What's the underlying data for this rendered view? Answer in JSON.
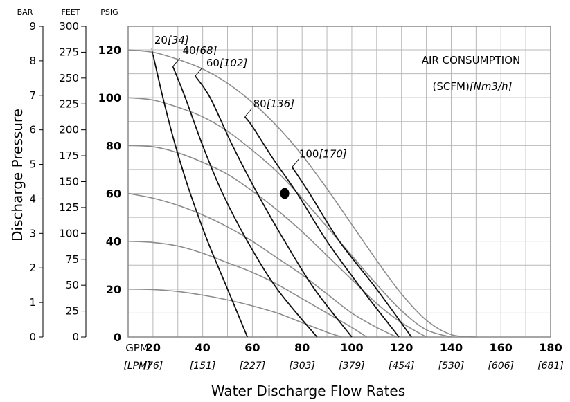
{
  "chart_data": {
    "type": "line",
    "xlabel": "Water Discharge Flow Rates",
    "ylabel": "Discharge Pressure",
    "x_unit_label": "GPM",
    "x_secondary_unit_label": "[LPM]",
    "x_ticks": [
      20,
      40,
      60,
      80,
      100,
      120,
      140,
      160,
      180
    ],
    "x_secondary_ticks": [
      "[76]",
      "[151]",
      "[227]",
      "[303]",
      "[379]",
      "[454]",
      "[530]",
      "[606]",
      "[681]"
    ],
    "xlim": [
      10,
      180
    ],
    "ylim": [
      0,
      125
    ],
    "grid": true,
    "y_axes": [
      {
        "unit": "BAR",
        "ticks": [
          "0",
          "1",
          "2",
          "3",
          "4",
          "5",
          "6",
          "7",
          "8",
          "9"
        ],
        "values": [
          0,
          1,
          2,
          3,
          4,
          5,
          6,
          7,
          8,
          9
        ]
      },
      {
        "unit": "FEET",
        "ticks": [
          "0",
          "25",
          "50",
          "75",
          "100",
          "125",
          "150",
          "175",
          "200",
          "225",
          "250",
          "275",
          "300"
        ],
        "values": [
          0,
          25,
          50,
          75,
          100,
          125,
          150,
          175,
          200,
          225,
          250,
          275,
          300
        ]
      },
      {
        "unit": "PSIG",
        "ticks": [
          "0",
          "20",
          "40",
          "60",
          "80",
          "100",
          "120"
        ],
        "values": [
          0,
          20,
          40,
          60,
          80,
          100,
          120
        ]
      }
    ],
    "annotation_title_line1": "AIR CONSUMPTION",
    "annotation_title_line2_plain": "(SCFM)",
    "annotation_title_line2_italic": "[Nm3/h]",
    "performance_curves": [
      {
        "pressure_psig": 120,
        "points": [
          [
            10,
            120
          ],
          [
            20,
            119
          ],
          [
            30,
            116
          ],
          [
            40,
            112
          ],
          [
            50,
            106
          ],
          [
            60,
            98
          ],
          [
            70,
            88
          ],
          [
            80,
            76
          ],
          [
            90,
            62
          ],
          [
            100,
            47
          ],
          [
            110,
            32
          ],
          [
            120,
            18
          ],
          [
            130,
            7
          ],
          [
            140,
            1
          ],
          [
            150,
            0
          ]
        ]
      },
      {
        "pressure_psig": 100,
        "points": [
          [
            10,
            100
          ],
          [
            20,
            99
          ],
          [
            30,
            96
          ],
          [
            40,
            92
          ],
          [
            50,
            86
          ],
          [
            60,
            78
          ],
          [
            70,
            69
          ],
          [
            80,
            58
          ],
          [
            90,
            46
          ],
          [
            100,
            34
          ],
          [
            110,
            22
          ],
          [
            120,
            11
          ],
          [
            130,
            3
          ],
          [
            140,
            0
          ]
        ]
      },
      {
        "pressure_psig": 80,
        "points": [
          [
            10,
            80
          ],
          [
            20,
            79.5
          ],
          [
            30,
            77
          ],
          [
            40,
            73
          ],
          [
            50,
            68
          ],
          [
            60,
            61
          ],
          [
            70,
            53
          ],
          [
            80,
            44
          ],
          [
            90,
            34
          ],
          [
            100,
            24
          ],
          [
            110,
            14
          ],
          [
            120,
            6
          ],
          [
            130,
            0
          ]
        ]
      },
      {
        "pressure_psig": 60,
        "points": [
          [
            10,
            60
          ],
          [
            20,
            58
          ],
          [
            30,
            55
          ],
          [
            40,
            51
          ],
          [
            50,
            46
          ],
          [
            60,
            40
          ],
          [
            70,
            33
          ],
          [
            80,
            26
          ],
          [
            90,
            18
          ],
          [
            100,
            10
          ],
          [
            110,
            4
          ],
          [
            118,
            0
          ]
        ]
      },
      {
        "pressure_psig": 40,
        "points": [
          [
            10,
            40
          ],
          [
            20,
            39.5
          ],
          [
            30,
            38
          ],
          [
            40,
            35
          ],
          [
            50,
            31
          ],
          [
            60,
            27
          ],
          [
            70,
            22
          ],
          [
            80,
            16
          ],
          [
            90,
            10
          ],
          [
            100,
            4
          ],
          [
            106,
            0
          ]
        ]
      },
      {
        "pressure_psig": 20,
        "points": [
          [
            10,
            20
          ],
          [
            20,
            19.8
          ],
          [
            30,
            19
          ],
          [
            40,
            17.5
          ],
          [
            50,
            15.5
          ],
          [
            60,
            13
          ],
          [
            70,
            10
          ],
          [
            80,
            6
          ],
          [
            90,
            2
          ],
          [
            96,
            0
          ]
        ]
      }
    ],
    "air_consumption_lines": [
      {
        "scfm": "20",
        "nm3h": "[34]",
        "points": [
          [
            20,
            118
          ],
          [
            24,
            100
          ],
          [
            29,
            80
          ],
          [
            35,
            60
          ],
          [
            42,
            40
          ],
          [
            50,
            20
          ],
          [
            58,
            0
          ]
        ]
      },
      {
        "scfm": "40",
        "nm3h": "[68]",
        "points": [
          [
            28,
            113
          ],
          [
            33,
            100
          ],
          [
            40,
            80
          ],
          [
            48,
            60
          ],
          [
            58,
            40
          ],
          [
            70,
            20
          ],
          [
            86,
            0
          ]
        ]
      },
      {
        "scfm": "60",
        "nm3h": "[102]",
        "points": [
          [
            37,
            109
          ],
          [
            43,
            100
          ],
          [
            52,
            80
          ],
          [
            62,
            60
          ],
          [
            73,
            40
          ],
          [
            85,
            20
          ],
          [
            100,
            0
          ]
        ]
      },
      {
        "scfm": "80",
        "nm3h": "[136]",
        "points": [
          [
            57,
            92
          ],
          [
            60,
            88
          ],
          [
            68,
            75
          ],
          [
            78,
            60
          ],
          [
            90,
            40
          ],
          [
            104,
            20
          ],
          [
            119,
            0
          ]
        ]
      },
      {
        "scfm": "100",
        "nm3h": "[170]",
        "points": [
          [
            76,
            71
          ],
          [
            83,
            60
          ],
          [
            95,
            40
          ],
          [
            110,
            20
          ],
          [
            124,
            0
          ]
        ]
      }
    ],
    "marker_point": {
      "x": 73,
      "y": 60
    }
  }
}
